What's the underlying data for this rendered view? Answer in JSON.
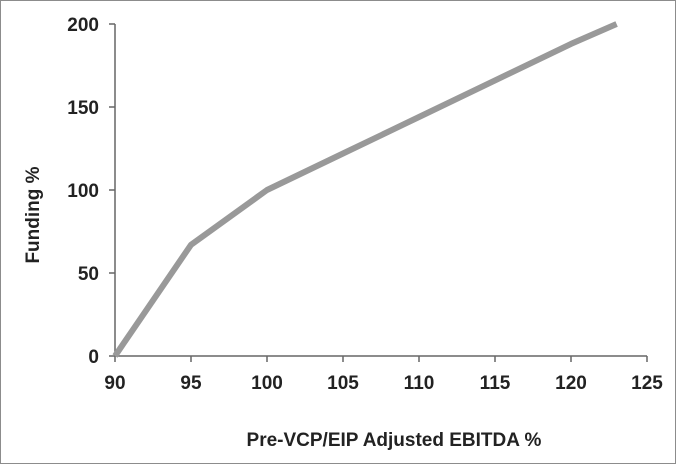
{
  "chart_data": {
    "type": "line",
    "title": "",
    "xlabel": "Pre-VCP/EIP Adjusted EBITDA %",
    "ylabel": "Funding %",
    "xlim": [
      90,
      125
    ],
    "ylim": [
      0,
      200
    ],
    "x_ticks": [
      90,
      95,
      100,
      105,
      110,
      115,
      120,
      125
    ],
    "y_ticks": [
      0,
      50,
      100,
      150,
      200
    ],
    "grid": false,
    "legend": "none",
    "series": [
      {
        "color": "#999999",
        "points": [
          {
            "x": 90,
            "y": 0
          },
          {
            "x": 95,
            "y": 67
          },
          {
            "x": 100,
            "y": 100
          },
          {
            "x": 105,
            "y": 122
          },
          {
            "x": 110,
            "y": 144
          },
          {
            "x": 115,
            "y": 166
          },
          {
            "x": 120,
            "y": 188
          },
          {
            "x": 123,
            "y": 200
          }
        ]
      }
    ],
    "axis_color": "#666666"
  }
}
